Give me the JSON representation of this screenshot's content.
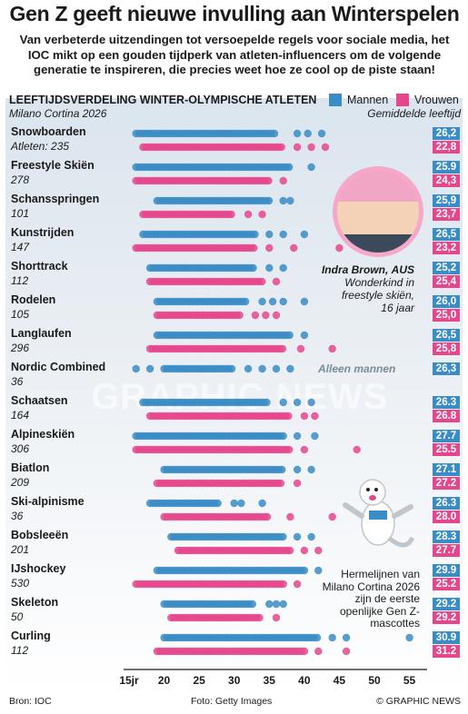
{
  "title": "Gen Z geeft nieuwe invulling aan Winterspelen",
  "subtitle_lines": [
    "Van verbeterde uitzendingen tot versoepelde regels voor sociale media, het",
    "IOC mikt op een gouden tijdperk van atleten-influencers om de volgende",
    "generatie te inspireren, die precies weet hoe ze cool op de piste staan!"
  ],
  "colors": {
    "men": "#3a8cc6",
    "women": "#e5478d",
    "axis_line": "#1a1a1a"
  },
  "chart_data": {
    "type": "scatter",
    "title": "LEEFTIJDSVERDELING WINTER-OLYMPISCHE ATLETEN",
    "subtitle": "Milano Cortina 2026",
    "legend": [
      "Mannen",
      "Vrouwen"
    ],
    "legend_placement": "top-right",
    "average_label": "Gemiddelde leeftijd",
    "xlim": [
      15,
      57
    ],
    "x_ticks": [
      "15jr",
      "20",
      "25",
      "30",
      "35",
      "40",
      "45",
      "50",
      "55"
    ],
    "x_tick_values": [
      15,
      20,
      25,
      30,
      35,
      40,
      45,
      50,
      55
    ],
    "sports": [
      {
        "name": "Snowboarden",
        "athletes": "Atleten: 235",
        "avg_men": "26,2",
        "avg_women": "22,8",
        "men_range": [
          16,
          36
        ],
        "men_outliers": [
          39,
          40.5,
          42.5
        ],
        "women_range": [
          17,
          37
        ],
        "women_outliers": [
          39,
          41,
          43
        ]
      },
      {
        "name": "Freestyle Skiën",
        "athletes": "278",
        "avg_men": "25.9",
        "avg_women": "24,3",
        "men_range": [
          16,
          38
        ],
        "men_outliers": [
          41
        ],
        "women_range": [
          16,
          35
        ],
        "women_outliers": [
          37
        ]
      },
      {
        "name": "Schansspringen",
        "athletes": "101",
        "avg_men": "25,9",
        "avg_women": "23,7",
        "men_range": [
          19,
          35
        ],
        "men_outliers": [
          37,
          38
        ],
        "women_range": [
          17,
          30
        ],
        "women_outliers": [
          32,
          34
        ]
      },
      {
        "name": "Kunstrijden",
        "athletes": "147",
        "avg_men": "26,5",
        "avg_women": "23,2",
        "men_range": [
          17,
          33
        ],
        "men_outliers": [
          35,
          37,
          40
        ],
        "women_range": [
          16,
          33
        ],
        "women_outliers": [
          35,
          38.5,
          45
        ]
      },
      {
        "name": "Shorttrack",
        "athletes": "112",
        "avg_men": "25,2",
        "avg_women": "25,4",
        "men_range": [
          18,
          33
        ],
        "men_outliers": [
          35,
          37
        ],
        "women_range": [
          18,
          34
        ],
        "women_outliers": [
          36
        ]
      },
      {
        "name": "Rodelen",
        "athletes": "105",
        "avg_men": "26,0",
        "avg_women": "25,0",
        "men_range": [
          19,
          32
        ],
        "men_outliers": [
          34,
          35.5,
          37,
          40
        ],
        "women_range": [
          19,
          31
        ],
        "women_outliers": [
          33,
          34.5,
          36
        ]
      },
      {
        "name": "Langlaufen",
        "athletes": "296",
        "avg_men": "26,5",
        "avg_women": "25,8",
        "men_range": [
          19,
          38
        ],
        "men_outliers": [
          40
        ],
        "women_range": [
          18,
          37
        ],
        "women_outliers": [
          39.5,
          44
        ]
      },
      {
        "name": "Nordic Combined",
        "athletes": "36",
        "avg_men": "26,3",
        "avg_women": "",
        "men_range": [
          20,
          30
        ],
        "men_outliers": [
          16,
          18,
          32,
          34,
          36,
          38
        ],
        "women_range": [],
        "women_outliers": [],
        "note": "Alleen mannen"
      },
      {
        "name": "Schaatsen",
        "athletes": "164",
        "avg_men": "26.3",
        "avg_women": "26.8",
        "men_range": [
          17,
          35
        ],
        "men_outliers": [
          37,
          39,
          41
        ],
        "women_range": [
          18,
          38
        ],
        "women_outliers": [
          40,
          41.5
        ]
      },
      {
        "name": "Alpineskiën",
        "athletes": "306",
        "avg_men": "27.7",
        "avg_women": "25.5",
        "men_range": [
          16,
          37
        ],
        "men_outliers": [
          39,
          41.5
        ],
        "women_range": [
          16,
          38
        ],
        "women_outliers": [
          40,
          47.5
        ]
      },
      {
        "name": "Biatlon",
        "athletes": "209",
        "avg_men": "27.1",
        "avg_women": "27.2",
        "men_range": [
          20,
          37
        ],
        "men_outliers": [
          39,
          41
        ],
        "women_range": [
          19,
          37
        ],
        "women_outliers": [
          39
        ]
      },
      {
        "name": "Ski-alpinisme",
        "athletes": "36",
        "avg_men": "26.3",
        "avg_women": "28.0",
        "men_range": [
          18,
          28
        ],
        "men_outliers": [
          30,
          31,
          34
        ],
        "women_range": [
          20,
          35
        ],
        "women_outliers": [
          38,
          44
        ]
      },
      {
        "name": "Bobsleeën",
        "athletes": "201",
        "avg_men": "28.3",
        "avg_women": "27.7",
        "men_range": [
          21,
          37
        ],
        "men_outliers": [
          39,
          41
        ],
        "women_range": [
          22,
          38
        ],
        "women_outliers": [
          40,
          42
        ]
      },
      {
        "name": "IJshockey",
        "athletes": "530",
        "avg_men": "29.9",
        "avg_women": "25.2",
        "men_range": [
          19,
          40
        ],
        "men_outliers": [
          42
        ],
        "women_range": [
          16,
          37
        ],
        "women_outliers": [
          39
        ]
      },
      {
        "name": "Skeleton",
        "athletes": "50",
        "avg_men": "29.2",
        "avg_women": "29.2",
        "men_range": [
          20,
          33
        ],
        "men_outliers": [
          35,
          36,
          37
        ],
        "women_range": [
          21,
          34
        ],
        "women_outliers": [
          36
        ]
      },
      {
        "name": "Curling",
        "athletes": "112",
        "avg_men": "30.9",
        "avg_women": "31.2",
        "men_range": [
          20,
          42
        ],
        "men_outliers": [
          44,
          46,
          55
        ],
        "women_range": [
          19,
          40
        ],
        "women_outliers": [
          42,
          46
        ]
      }
    ]
  },
  "profile": {
    "name": "Indra Brown,",
    "country": "AUS",
    "caption_lines": [
      "Wonderkind in",
      "freestyle skiën,",
      "16 jaar"
    ]
  },
  "mascot_caption": "Hermelijnen van Milano Cortina 2026 zijn de eerste openlijke Gen Z-mascottes",
  "watermark": "GRAPHIC NEWS",
  "footer": {
    "source": "Bron: IOC",
    "photo": "Foto: Getty Images",
    "copyright": "© GRAPHIC NEWS"
  }
}
